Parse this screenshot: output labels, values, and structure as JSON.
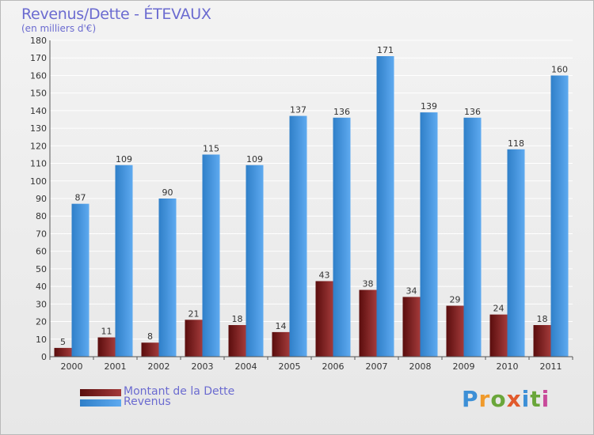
{
  "header": {
    "title": "Revenus/Dette - ÉTEVAUX",
    "subtitle": "(en milliers d'€)"
  },
  "logo": {
    "text": "Proxiti"
  },
  "colors": {
    "dette_dark": "#5a0d0d",
    "dette_light": "#a33a3a",
    "revenus_dark": "#2f7fc8",
    "revenus_light": "#5eaaf0",
    "grid": "#ffffff",
    "text": "#333333",
    "accent_text": "#6b6bd0"
  },
  "chart_data": {
    "type": "bar",
    "categories": [
      "2000",
      "2001",
      "2002",
      "2003",
      "2004",
      "2005",
      "2006",
      "2007",
      "2008",
      "2009",
      "2010",
      "2011"
    ],
    "series": [
      {
        "name": "Montant de la Dette",
        "values": [
          5,
          11,
          8,
          21,
          18,
          14,
          43,
          38,
          34,
          29,
          24,
          18
        ]
      },
      {
        "name": "Revenus",
        "values": [
          87,
          109,
          90,
          115,
          109,
          137,
          136,
          171,
          139,
          136,
          118,
          160
        ]
      }
    ],
    "ylim": [
      0,
      180
    ],
    "yticks": [
      0,
      10,
      20,
      30,
      40,
      50,
      60,
      70,
      80,
      90,
      100,
      110,
      120,
      130,
      140,
      150,
      160,
      170,
      180
    ],
    "grid": true,
    "legend_position": "bottom-left"
  }
}
